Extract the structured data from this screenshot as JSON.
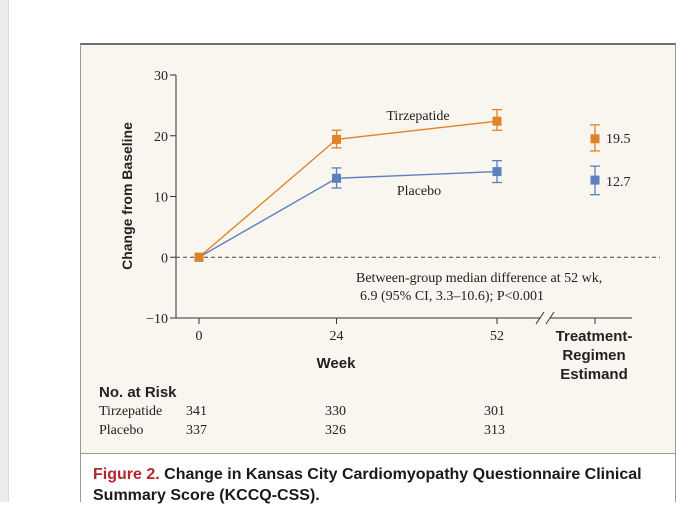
{
  "chart_data": {
    "type": "line",
    "title": "",
    "ylabel": "Change from Baseline",
    "xlabel": "Week",
    "ylim": [
      -10,
      30
    ],
    "yticks": [
      -10,
      0,
      10,
      20,
      30
    ],
    "ytick_labels": [
      "−10",
      "0",
      "10",
      "20",
      "30"
    ],
    "x": [
      0,
      24,
      52
    ],
    "xtick_labels": [
      "0",
      "24",
      "52"
    ],
    "series": [
      {
        "name": "Tirzepatide",
        "color": "#e0822a",
        "values": [
          0,
          19.4,
          22.4
        ],
        "err_low": [
          0,
          18.0,
          20.9
        ],
        "err_high": [
          0,
          20.9,
          24.3
        ]
      },
      {
        "name": "Placebo",
        "color": "#5b7fc1",
        "values": [
          0,
          13.0,
          14.1
        ],
        "err_low": [
          0,
          11.4,
          12.3
        ],
        "err_high": [
          0,
          14.7,
          15.9
        ]
      }
    ],
    "estimand": {
      "label_lines": [
        "Treatment-",
        "Regimen",
        "Estimand"
      ],
      "tirzepatide": {
        "value": 19.5,
        "label": "19.5",
        "err_low": 17.5,
        "err_high": 21.8
      },
      "placebo": {
        "value": 12.7,
        "label": "12.7",
        "err_low": 10.3,
        "err_high": 15.0
      }
    },
    "annotation_lines": [
      "Between-group median difference at 52 wk,",
      "6.9 (95% CI, 3.3–10.6); P<0.001"
    ]
  },
  "risk_table": {
    "title": "No. at Risk",
    "rows": [
      {
        "label": "Tirzepatide",
        "values": [
          "341",
          "330",
          "301"
        ]
      },
      {
        "label": "Placebo",
        "values": [
          "337",
          "326",
          "313"
        ]
      }
    ]
  },
  "caption": {
    "label": "Figure 2.",
    "text": " Change in Kansas City Cardiomyopathy Questionnaire Clinical Summary Score (KCCQ-CSS)."
  },
  "colors": {
    "tirzepatide": "#e0822a",
    "placebo": "#5b7fc1",
    "figure_label": "#b5262d",
    "panel_bg": "#f8f6ee"
  }
}
